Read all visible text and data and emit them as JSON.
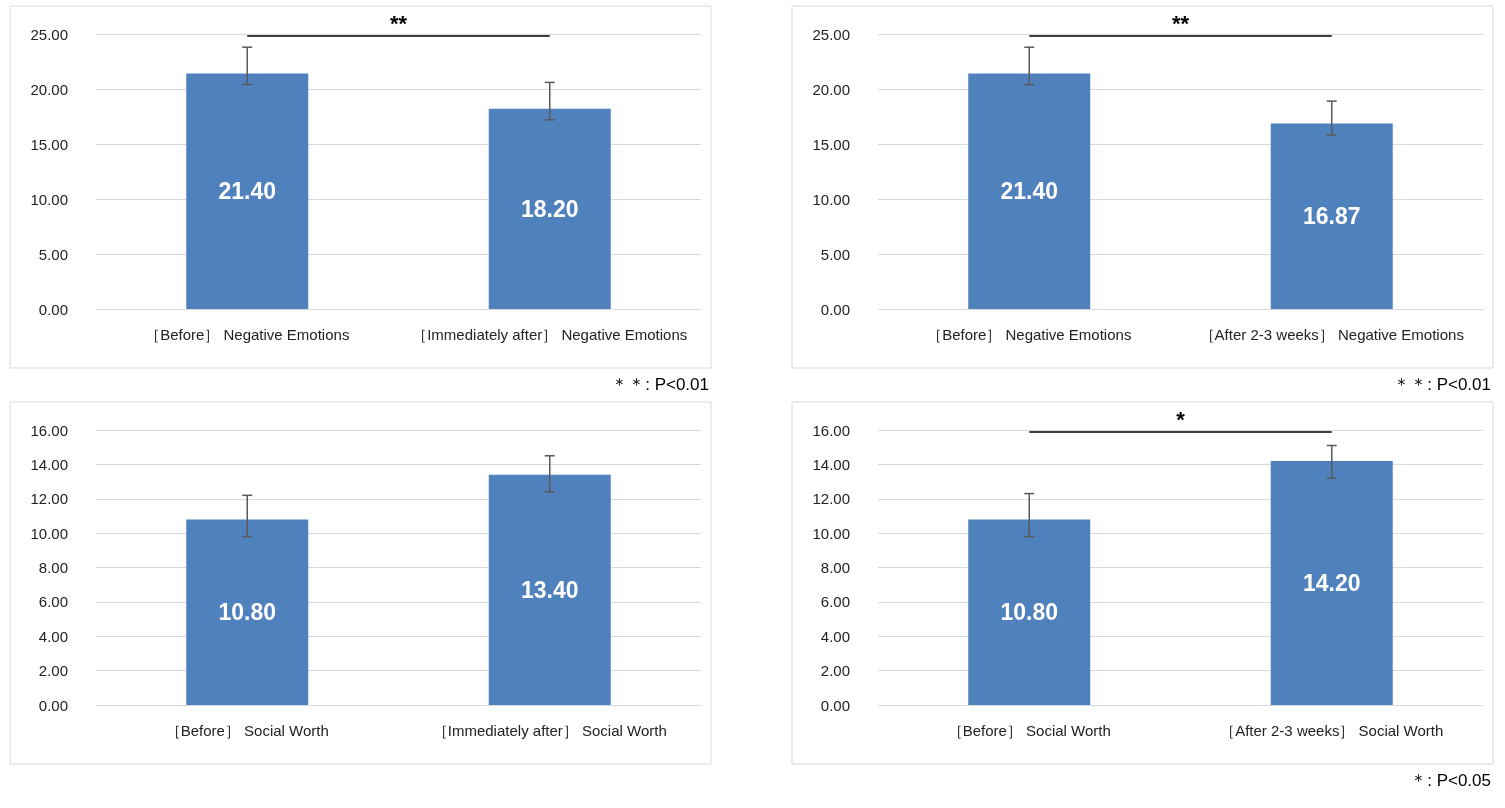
{
  "chart_data": [
    {
      "type": "bar",
      "categories": [
        "［Before］ Negative Emotions",
        "［Immediately after］ Negative Emotions"
      ],
      "values": [
        21.4,
        18.2
      ],
      "value_labels": [
        "21.40",
        "18.20"
      ],
      "color": "#4f81bd",
      "errors": [
        [
          20.4,
          23.8
        ],
        [
          17.2,
          20.6
        ]
      ],
      "ylim": [
        0,
        25
      ],
      "yticks": [
        {
          "value": 0,
          "label": "0.00"
        },
        {
          "value": 5,
          "label": "5.00"
        },
        {
          "value": 10,
          "label": "10.00"
        },
        {
          "value": 15,
          "label": "15.00"
        },
        {
          "value": 20,
          "label": "20.00"
        },
        {
          "value": 25,
          "label": "25.00"
        }
      ],
      "grid": "y",
      "annotations": [
        "**",
        "＊＊: P<0.01"
      ]
    },
    {
      "type": "bar",
      "categories": [
        "［Before］ Negative Emotions",
        "［After 2-3 weeks］ Negative Emotions"
      ],
      "values": [
        21.4,
        16.87
      ],
      "value_labels": [
        "21.40",
        "16.87"
      ],
      "color": "#4f81bd",
      "errors": [
        [
          20.4,
          23.8
        ],
        [
          15.8,
          18.9
        ]
      ],
      "ylim": [
        0,
        25
      ],
      "yticks": [
        {
          "value": 0,
          "label": "0.00"
        },
        {
          "value": 5,
          "label": "5.00"
        },
        {
          "value": 10,
          "label": "10.00"
        },
        {
          "value": 15,
          "label": "15.00"
        },
        {
          "value": 20,
          "label": "20.00"
        },
        {
          "value": 25,
          "label": "25.00"
        }
      ],
      "grid": "y",
      "annotations": [
        "**",
        "＊＊: P<0.01"
      ]
    },
    {
      "type": "bar",
      "categories": [
        "［Before］ Social Worth",
        "［Immediately after］ Social Worth"
      ],
      "values": [
        10.8,
        13.4
      ],
      "value_labels": [
        "10.80",
        "13.40"
      ],
      "color": "#4f81bd",
      "errors": [
        [
          9.8,
          12.2
        ],
        [
          12.4,
          14.5
        ]
      ],
      "ylim": [
        0,
        16
      ],
      "yticks": [
        {
          "value": 0,
          "label": "0.00"
        },
        {
          "value": 2,
          "label": "2.00"
        },
        {
          "value": 4,
          "label": "4.00"
        },
        {
          "value": 6,
          "label": "6.00"
        },
        {
          "value": 8,
          "label": "8.00"
        },
        {
          "value": 10,
          "label": "10.00"
        },
        {
          "value": 12,
          "label": "12.00"
        },
        {
          "value": 14,
          "label": "14.00"
        },
        {
          "value": 16,
          "label": "16.00"
        }
      ],
      "grid": "y"
    },
    {
      "type": "bar",
      "categories": [
        "［Before］ Social Worth",
        "［After 2-3 weeks］ Social Worth"
      ],
      "values": [
        10.8,
        14.2
      ],
      "value_labels": [
        "10.80",
        "14.20"
      ],
      "color": "#4f81bd",
      "errors": [
        [
          9.8,
          12.3
        ],
        [
          13.2,
          15.1
        ]
      ],
      "ylim": [
        0,
        16
      ],
      "yticks": [
        {
          "value": 0,
          "label": "0.00"
        },
        {
          "value": 2,
          "label": "2.00"
        },
        {
          "value": 4,
          "label": "4.00"
        },
        {
          "value": 6,
          "label": "6.00"
        },
        {
          "value": 8,
          "label": "8.00"
        },
        {
          "value": 10,
          "label": "10.00"
        },
        {
          "value": 12,
          "label": "12.00"
        },
        {
          "value": 14,
          "label": "14.00"
        },
        {
          "value": 16,
          "label": "16.00"
        }
      ],
      "grid": "y",
      "annotations": [
        "*",
        "＊: P<0.05"
      ]
    }
  ]
}
